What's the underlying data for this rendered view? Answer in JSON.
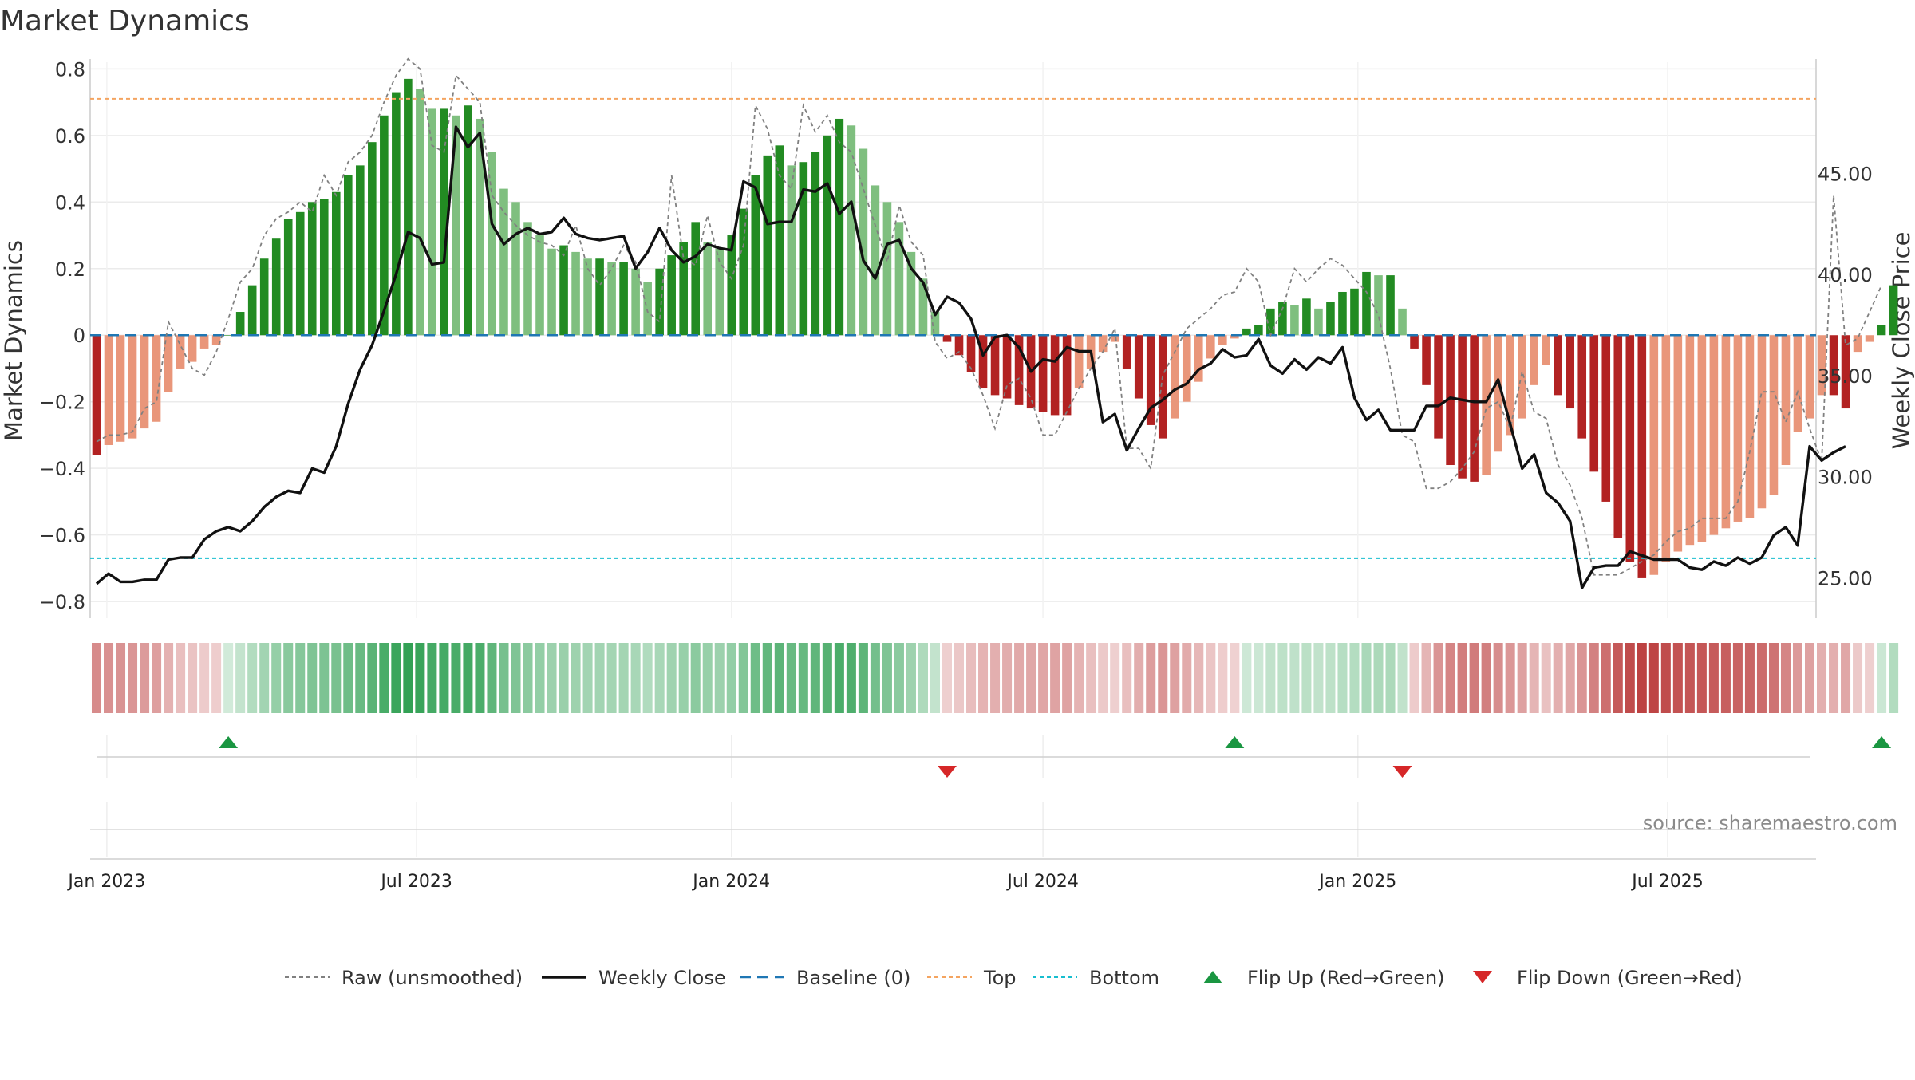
{
  "title": "Market Dynamics",
  "source": "source: sharemaestro.com",
  "chart_data": {
    "type": "bar",
    "left_axis": {
      "label": "Market Dynamics",
      "ylim": [
        -0.85,
        0.82
      ],
      "ticks": [
        0.8,
        0.6,
        0.4,
        0.2,
        0,
        -0.2,
        -0.4,
        -0.6,
        -0.8
      ],
      "tick_labels": [
        "0.8",
        "0.6",
        "0.4",
        "0.2",
        "0",
        "−0.2",
        "−0.4",
        "−0.6",
        "−0.8"
      ]
    },
    "right_axis": {
      "label": "Weekly Close Price",
      "ylim": [
        23.0,
        50.5
      ],
      "ticks": [
        45,
        40,
        35,
        30,
        25
      ],
      "tick_labels": [
        "45.00",
        "40.00",
        "35.00",
        "30.00",
        "25.00"
      ]
    },
    "x_axis": {
      "start": "2022-12-26",
      "end": "2025-09-22",
      "ticks": [
        "2023-01-01",
        "2023-07-01",
        "2024-01-01",
        "2024-07-01",
        "2025-01-01",
        "2025-07-01"
      ],
      "tick_labels": [
        "Jan 2023",
        "Jul 2023",
        "Jan 2024",
        "Jul 2024",
        "Jan 2025",
        "Jul 2025"
      ]
    },
    "reference_lines": {
      "baseline": 0,
      "top": 0.71,
      "bottom": -0.67
    },
    "grid": true,
    "legend_position": "bottom",
    "colors": {
      "strong_green": "#228b22",
      "light_green": "#7fbf7f",
      "strong_red": "#b22222",
      "light_red": "#e9967a",
      "raw": "#808080",
      "close": "#111111",
      "baseline": "#1f77b4",
      "top": "#f4a460",
      "bottom": "#17becf",
      "flip_up": "#1a9641",
      "flip_down": "#d62728"
    },
    "momentum": [
      -0.36,
      -0.33,
      -0.32,
      -0.31,
      -0.28,
      -0.26,
      -0.17,
      -0.1,
      -0.08,
      -0.04,
      -0.03,
      0,
      0.07,
      0.15,
      0.23,
      0.29,
      0.35,
      0.37,
      0.4,
      0.41,
      0.43,
      0.48,
      0.51,
      0.58,
      0.66,
      0.73,
      0.77,
      0.74,
      0.68,
      0.68,
      0.66,
      0.69,
      0.65,
      0.55,
      0.44,
      0.4,
      0.34,
      0.3,
      0.26,
      0.27,
      0.25,
      0.23,
      0.23,
      0.22,
      0.22,
      0.2,
      0.16,
      0.2,
      0.24,
      0.28,
      0.34,
      0.28,
      0.26,
      0.3,
      0.38,
      0.48,
      0.54,
      0.57,
      0.51,
      0.52,
      0.55,
      0.6,
      0.65,
      0.63,
      0.56,
      0.45,
      0.4,
      0.34,
      0.25,
      0.17,
      0.07,
      -0.02,
      -0.06,
      -0.11,
      -0.16,
      -0.18,
      -0.19,
      -0.21,
      -0.22,
      -0.23,
      -0.24,
      -0.24,
      -0.16,
      -0.1,
      -0.05,
      -0.02,
      -0.1,
      -0.19,
      -0.27,
      -0.31,
      -0.25,
      -0.2,
      -0.14,
      -0.07,
      -0.03,
      -0.01,
      0.02,
      0.03,
      0.08,
      0.1,
      0.09,
      0.11,
      0.08,
      0.1,
      0.13,
      0.14,
      0.19,
      0.18,
      0.18,
      0.08,
      -0.04,
      -0.15,
      -0.31,
      -0.39,
      -0.43,
      -0.44,
      -0.42,
      -0.35,
      -0.3,
      -0.25,
      -0.15,
      -0.09,
      -0.18,
      -0.22,
      -0.31,
      -0.41,
      -0.5,
      -0.61,
      -0.68,
      -0.73,
      -0.72,
      -0.68,
      -0.65,
      -0.63,
      -0.62,
      -0.6,
      -0.58,
      -0.56,
      -0.55,
      -0.52,
      -0.48,
      -0.39,
      -0.29,
      -0.25,
      -0.18,
      -0.18,
      -0.22,
      -0.05,
      -0.02,
      0.03,
      0.15
    ],
    "momentum_raw": [
      -0.32,
      -0.3,
      -0.3,
      -0.29,
      -0.22,
      -0.2,
      0.04,
      -0.03,
      -0.1,
      -0.12,
      -0.05,
      0.05,
      0.16,
      0.2,
      0.3,
      0.35,
      0.37,
      0.4,
      0.37,
      0.48,
      0.42,
      0.52,
      0.55,
      0.6,
      0.7,
      0.78,
      0.83,
      0.8,
      0.57,
      0.55,
      0.78,
      0.74,
      0.7,
      0.42,
      0.37,
      0.33,
      0.3,
      0.28,
      0.27,
      0.24,
      0.33,
      0.2,
      0.15,
      0.2,
      0.27,
      0.22,
      0.07,
      0.04,
      0.48,
      0.23,
      0.21,
      0.36,
      0.22,
      0.17,
      0.27,
      0.69,
      0.62,
      0.48,
      0.44,
      0.69,
      0.61,
      0.66,
      0.58,
      0.55,
      0.44,
      0.33,
      0.22,
      0.39,
      0.28,
      0.24,
      -0.02,
      -0.07,
      -0.05,
      -0.1,
      -0.18,
      -0.28,
      -0.15,
      -0.13,
      -0.19,
      -0.3,
      -0.3,
      -0.23,
      -0.16,
      -0.1,
      -0.05,
      0.02,
      -0.34,
      -0.34,
      -0.4,
      -0.12,
      -0.05,
      0.02,
      0.05,
      0.08,
      0.12,
      0.13,
      0.2,
      0.16,
      0.0,
      0.08,
      0.2,
      0.16,
      0.2,
      0.23,
      0.21,
      0.17,
      0.13,
      0.06,
      -0.1,
      -0.3,
      -0.32,
      -0.46,
      -0.46,
      -0.44,
      -0.4,
      -0.35,
      -0.22,
      -0.2,
      -0.28,
      -0.11,
      -0.23,
      -0.25,
      -0.39,
      -0.45,
      -0.55,
      -0.72,
      -0.72,
      -0.72,
      -0.7,
      -0.68,
      -0.66,
      -0.62,
      -0.59,
      -0.58,
      -0.55,
      -0.55,
      -0.55,
      -0.5,
      -0.35,
      -0.17,
      -0.17,
      -0.26,
      -0.17,
      -0.28,
      -0.38,
      0.42,
      -0.03,
      -0.01,
      0.07,
      0.15
    ],
    "weekly_close": [
      24.7,
      25.2,
      24.8,
      24.8,
      24.9,
      24.9,
      25.9,
      26.0,
      26.0,
      26.9,
      27.3,
      27.5,
      27.3,
      27.8,
      28.5,
      29.0,
      29.3,
      29.2,
      30.4,
      30.2,
      31.5,
      33.6,
      35.3,
      36.5,
      38.2,
      40.0,
      42.1,
      41.8,
      40.5,
      40.6,
      47.3,
      46.3,
      47.0,
      42.5,
      41.5,
      42.0,
      42.3,
      42.0,
      42.1,
      42.8,
      42.0,
      41.8,
      41.7,
      41.8,
      41.9,
      40.3,
      41.1,
      42.3,
      41.2,
      40.6,
      40.9,
      41.5,
      41.3,
      41.2,
      44.6,
      44.3,
      42.5,
      42.6,
      42.6,
      44.2,
      44.1,
      44.5,
      43.0,
      43.6,
      40.7,
      39.8,
      41.5,
      41.7,
      40.3,
      39.6,
      38.0,
      38.9,
      38.6,
      37.8,
      36.0,
      36.9,
      37.0,
      36.4,
      35.2,
      35.8,
      35.7,
      36.4,
      36.2,
      36.2,
      32.7,
      33.1,
      31.3,
      32.4,
      33.4,
      33.8,
      34.3,
      34.6,
      35.3,
      35.6,
      36.3,
      35.9,
      36.0,
      36.8,
      35.5,
      35.1,
      35.8,
      35.3,
      35.9,
      35.6,
      36.4,
      33.9,
      32.8,
      33.3,
      32.3,
      32.3,
      32.3,
      33.5,
      33.5,
      33.9,
      33.8,
      33.7,
      33.7,
      34.8,
      32.6,
      30.4,
      31.1,
      29.2,
      28.7,
      27.8,
      24.5,
      25.5,
      25.6,
      25.6,
      26.3,
      26.1,
      25.9,
      25.9,
      25.9,
      25.5,
      25.4,
      25.8,
      25.6,
      26.0,
      25.7,
      26.0,
      27.1,
      27.5,
      26.6,
      31.5,
      30.8,
      31.2,
      31.5
    ],
    "flip_up_weeks": [
      11,
      95,
      149
    ],
    "flip_down_weeks": [
      71,
      109
    ],
    "legend": [
      {
        "key": "raw",
        "label": "Raw (unsmoothed)"
      },
      {
        "key": "close",
        "label": "Weekly Close"
      },
      {
        "key": "baseline",
        "label": "Baseline (0)"
      },
      {
        "key": "top",
        "label": "Top"
      },
      {
        "key": "bottom",
        "label": "Bottom"
      },
      {
        "key": "flip_up",
        "label": "Flip Up (Red→Green)"
      },
      {
        "key": "flip_down",
        "label": "Flip Down (Green→Red)"
      }
    ]
  }
}
